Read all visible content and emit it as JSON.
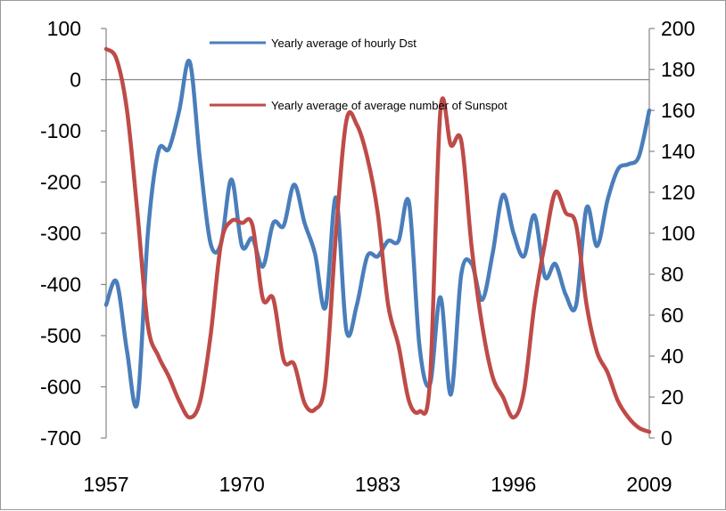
{
  "chart_data": {
    "type": "line",
    "title": "",
    "xlabel": "",
    "ylabel": "",
    "y2label": "",
    "x_ticks": [
      "1957",
      "1970",
      "1983",
      "1996",
      "2009"
    ],
    "xlim": [
      1957,
      2009
    ],
    "y_left": {
      "lim": [
        -700,
        100
      ],
      "ticks": [
        "100",
        "0",
        "-100",
        "-200",
        "-300",
        "-400",
        "-500",
        "-600",
        "-700"
      ]
    },
    "y_right": {
      "lim": [
        0,
        200
      ],
      "ticks": [
        "200",
        "180",
        "160",
        "140",
        "120",
        "100",
        "80",
        "60",
        "40",
        "20",
        "0"
      ]
    },
    "grid": false,
    "legend_position": "top-center",
    "series": [
      {
        "name": "Yearly average of hourly Dst",
        "axis": "left",
        "color": "#4a7ebb",
        "x": [
          1957,
          1958,
          1959,
          1960,
          1961,
          1962,
          1963,
          1964,
          1965,
          1966,
          1967,
          1968,
          1969,
          1970,
          1971,
          1972,
          1973,
          1974,
          1975,
          1976,
          1977,
          1978,
          1979,
          1980,
          1981,
          1982,
          1983,
          1984,
          1985,
          1986,
          1987,
          1988,
          1989,
          1990,
          1991,
          1992,
          1993,
          1994,
          1995,
          1996,
          1997,
          1998,
          1999,
          2000,
          2001,
          2002,
          2003,
          2004,
          2005,
          2006,
          2007,
          2008,
          2009
        ],
        "y": [
          -440,
          -395,
          -530,
          -630,
          -300,
          -140,
          -135,
          -60,
          35,
          -160,
          -320,
          -320,
          -195,
          -325,
          -310,
          -365,
          -280,
          -285,
          -205,
          -280,
          -340,
          -445,
          -230,
          -490,
          -440,
          -345,
          -345,
          -315,
          -315,
          -240,
          -520,
          -595,
          -425,
          -615,
          -380,
          -360,
          -430,
          -340,
          -225,
          -300,
          -345,
          -265,
          -385,
          -360,
          -420,
          -440,
          -250,
          -325,
          -235,
          -175,
          -165,
          -150,
          -60
        ]
      },
      {
        "name": "Yearly average of average number of Sunspot",
        "axis": "right",
        "color": "#be4b48",
        "x": [
          1957,
          1958,
          1959,
          1960,
          1961,
          1962,
          1963,
          1964,
          1965,
          1966,
          1967,
          1968,
          1969,
          1970,
          1971,
          1972,
          1973,
          1974,
          1975,
          1976,
          1977,
          1978,
          1979,
          1980,
          1981,
          1982,
          1983,
          1984,
          1985,
          1986,
          1987,
          1988,
          1989,
          1990,
          1991,
          1992,
          1993,
          1994,
          1995,
          1996,
          1997,
          1998,
          1999,
          2000,
          2001,
          2002,
          2003,
          2004,
          2005,
          2006,
          2007,
          2008,
          2009
        ],
        "y": [
          190,
          185,
          160,
          110,
          55,
          40,
          30,
          18,
          10,
          18,
          50,
          95,
          106,
          105,
          104,
          68,
          68,
          38,
          36,
          17,
          14,
          28,
          100,
          155,
          153,
          137,
          110,
          65,
          45,
          18,
          13,
          28,
          160,
          143,
          145,
          93,
          55,
          30,
          20,
          10,
          23,
          65,
          95,
          120,
          110,
          104,
          65,
          42,
          32,
          18,
          10,
          5,
          3
        ]
      }
    ]
  },
  "legend": [
    {
      "label": "Yearly average of hourly Dst",
      "color": "#4a7ebb"
    },
    {
      "label": "Yearly average of average number of Sunspot",
      "color": "#be4b48"
    }
  ]
}
